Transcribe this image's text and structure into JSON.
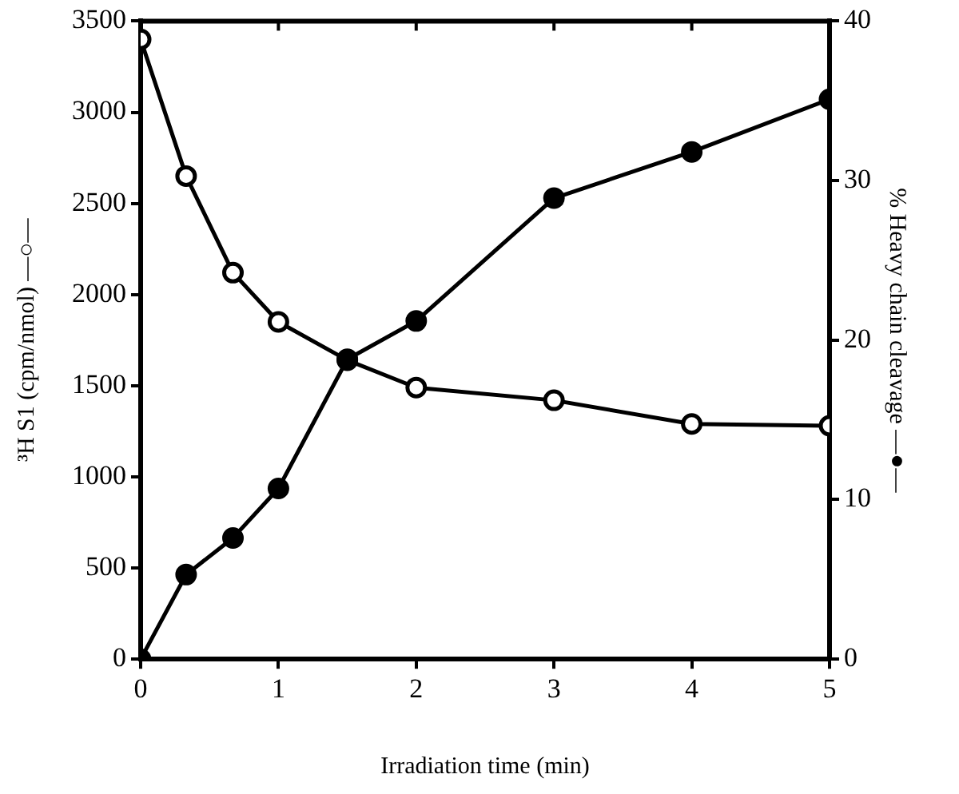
{
  "chart_data": {
    "type": "line",
    "xlabel": "Irradiation time (min)",
    "ylabel": "³H S1 (cpm/nmol) —○—",
    "y2label": "% Heavy chain cleavage —●—",
    "x": [
      0,
      0.33,
      0.67,
      1,
      1.5,
      2,
      3,
      4,
      5
    ],
    "series": [
      {
        "color": "#000000",
        "marker": "circle",
        "values": [
          3400,
          2650,
          2120,
          1850,
          1640,
          1490,
          1420,
          1290,
          1280
        ]
      },
      {
        "color": "#000000",
        "marker": "circle",
        "axis": "y2",
        "values": [
          0,
          5.3,
          7.6,
          10.7,
          18.8,
          21.2,
          28.9,
          31.8,
          35.1
        ]
      }
    ],
    "xlim": [
      0,
      5
    ],
    "xticks": [
      0,
      1,
      2,
      3,
      4,
      5
    ],
    "ylim": [
      0,
      3500
    ],
    "yticks": [
      0,
      500,
      1000,
      1500,
      2000,
      2500,
      3000,
      3500
    ],
    "y2lim": [
      0,
      40
    ],
    "y2ticks": [
      0,
      10,
      20,
      30,
      40
    ],
    "grid": false,
    "legend": false,
    "line_style": "solid"
  }
}
